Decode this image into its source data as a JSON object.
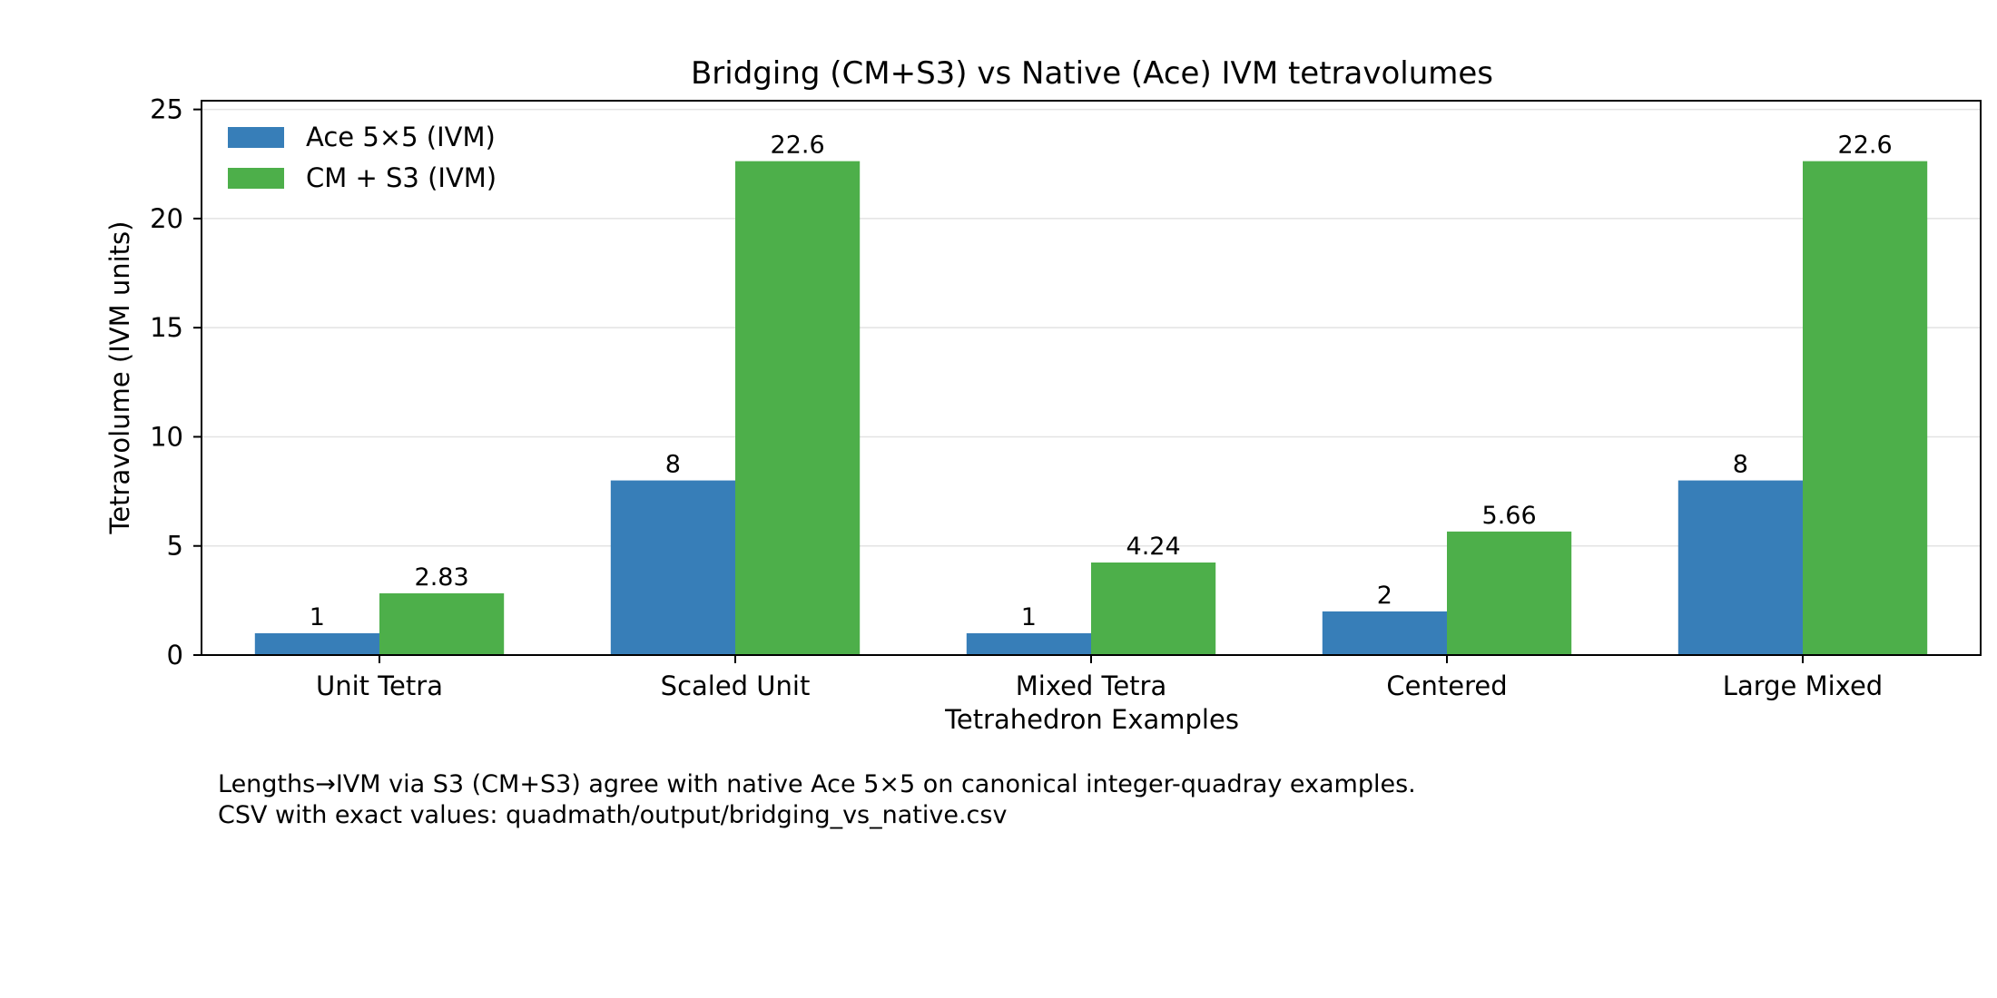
{
  "chart_data": {
    "type": "bar",
    "title": "Bridging (CM+S3) vs Native (Ace) IVM tetravolumes",
    "xlabel": "Tetrahedron Examples",
    "ylabel": "Tetravolume (IVM units)",
    "ylim": [
      0,
      25.4
    ],
    "yticks": [
      0,
      5,
      10,
      15,
      20,
      25
    ],
    "grid": "horizontal",
    "legend_position": "top-left",
    "categories": [
      "Unit Tetra",
      "Scaled Unit",
      "Mixed Tetra",
      "Centered",
      "Large Mixed"
    ],
    "series": [
      {
        "name": "Ace 5×5 (IVM)",
        "color": "#377eb8",
        "values": [
          1,
          8,
          1,
          2,
          8
        ],
        "labels": [
          "1",
          "8",
          "1",
          "2",
          "8"
        ]
      },
      {
        "name": "CM + S3 (IVM)",
        "color": "#4daf4a",
        "values": [
          2.83,
          22.63,
          4.24,
          5.66,
          22.63
        ],
        "labels": [
          "2.83",
          "22.6",
          "4.24",
          "5.66",
          "22.6"
        ]
      }
    ]
  },
  "caption": {
    "line1": "Lengths→IVM via S3 (CM+S3) agree with native Ace 5×5 on canonical integer-quadray examples.",
    "line2": "CSV with exact values: quadmath/output/bridging_vs_native.csv"
  }
}
